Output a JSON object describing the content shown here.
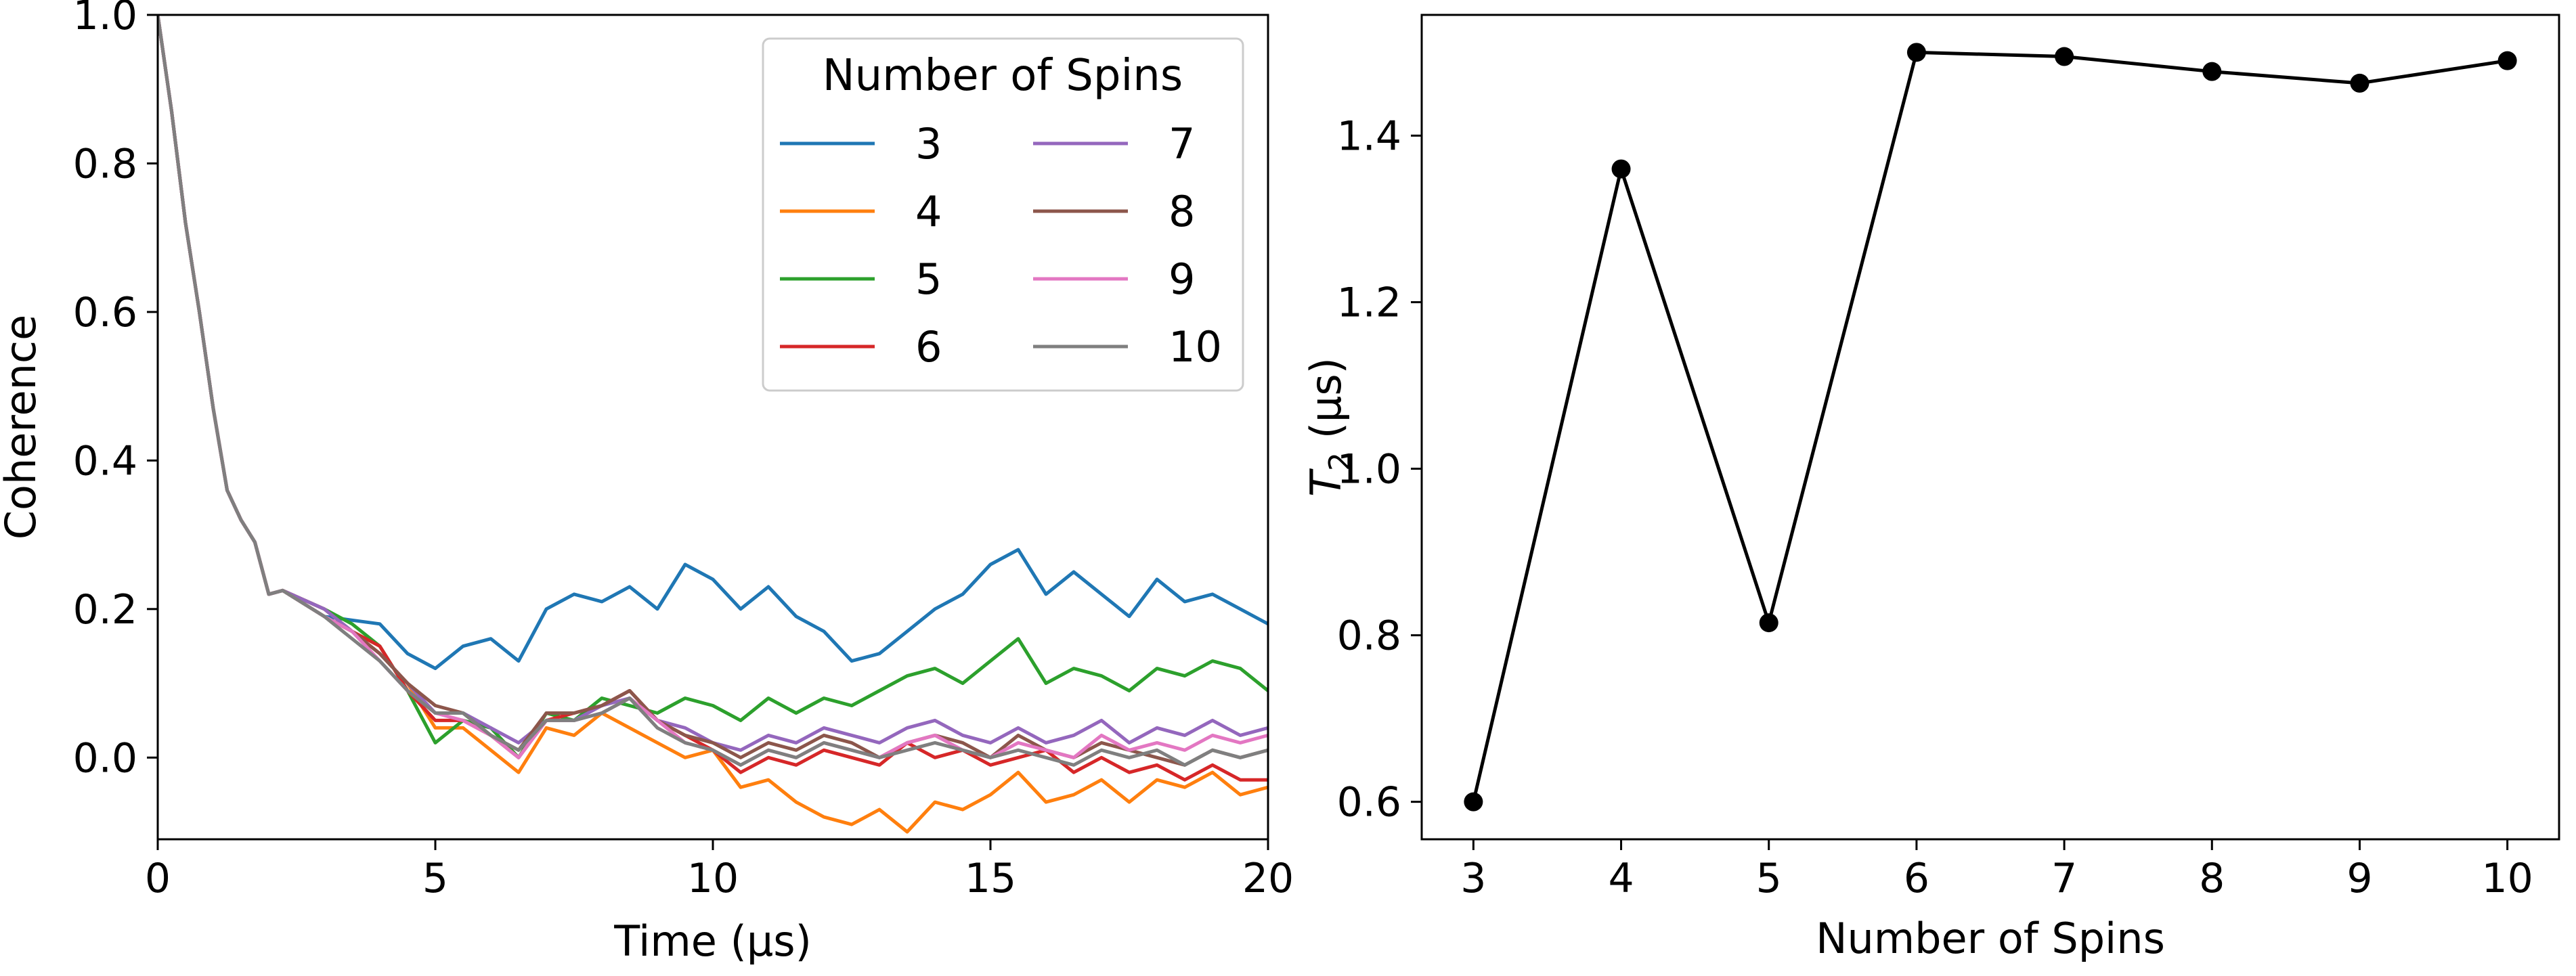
{
  "chart_data": [
    {
      "type": "line",
      "xlabel": "Time (μs)",
      "ylabel": "Coherence",
      "xlim": [
        0,
        20
      ],
      "ylim": [
        -0.11,
        1.0
      ],
      "xticks": [
        0,
        5,
        10,
        15,
        20
      ],
      "yticks": [
        0.0,
        0.2,
        0.4,
        0.6,
        0.8,
        1.0
      ],
      "xtick_labels": [
        "0",
        "5",
        "10",
        "15",
        "20"
      ],
      "ytick_labels": [
        "0.0",
        "0.2",
        "0.4",
        "0.6",
        "0.8",
        "1.0"
      ],
      "legend": {
        "title": "Number of Spins",
        "placement": "top-right",
        "columns": 2
      },
      "grid": false,
      "shared_decay": {
        "x": [
          0,
          0.25,
          0.5,
          0.75,
          1.0,
          1.25,
          1.5,
          1.75,
          2.0,
          2.25
        ],
        "y": [
          1.0,
          0.87,
          0.72,
          0.6,
          0.47,
          0.36,
          0.32,
          0.29,
          0.22,
          0.225
        ]
      },
      "series": [
        {
          "name": "3",
          "color": "#1f77b4",
          "x": [
            2.25,
            3,
            3.5,
            4,
            4.5,
            5,
            5.5,
            6,
            6.5,
            7,
            7.5,
            8,
            8.5,
            9,
            9.5,
            10,
            10.5,
            11,
            11.5,
            12,
            12.5,
            13,
            13.5,
            14,
            14.5,
            15,
            15.5,
            16,
            16.5,
            17,
            17.5,
            18,
            18.5,
            19,
            19.5,
            20
          ],
          "y": [
            0.225,
            0.19,
            0.185,
            0.18,
            0.14,
            0.12,
            0.15,
            0.16,
            0.13,
            0.2,
            0.22,
            0.21,
            0.23,
            0.2,
            0.26,
            0.24,
            0.2,
            0.23,
            0.19,
            0.17,
            0.13,
            0.14,
            0.17,
            0.2,
            0.22,
            0.26,
            0.28,
            0.22,
            0.25,
            0.22,
            0.19,
            0.24,
            0.21,
            0.22,
            0.2,
            0.18
          ]
        },
        {
          "name": "4",
          "color": "#ff7f0e",
          "x": [
            2.25,
            3,
            3.5,
            4,
            4.5,
            5,
            5.5,
            6,
            6.5,
            7,
            7.5,
            8,
            8.5,
            9,
            9.5,
            10,
            10.5,
            11,
            11.5,
            12,
            12.5,
            13,
            13.5,
            14,
            14.5,
            15,
            15.5,
            16,
            16.5,
            17,
            17.5,
            18,
            18.5,
            19,
            19.5,
            20
          ],
          "y": [
            0.21,
            0.19,
            0.17,
            0.14,
            0.1,
            0.04,
            0.04,
            0.01,
            -0.02,
            0.04,
            0.03,
            0.06,
            0.04,
            0.02,
            0.0,
            0.01,
            -0.04,
            -0.03,
            -0.06,
            -0.08,
            -0.09,
            -0.07,
            -0.1,
            -0.06,
            -0.07,
            -0.05,
            -0.02,
            -0.06,
            -0.05,
            -0.03,
            -0.06,
            -0.03,
            -0.04,
            -0.02,
            -0.05,
            -0.04
          ]
        },
        {
          "name": "5",
          "color": "#2ca02c",
          "x": [
            2.25,
            3,
            3.5,
            4,
            4.5,
            5,
            5.5,
            6,
            6.5,
            7,
            7.5,
            8,
            8.5,
            9,
            9.5,
            10,
            10.5,
            11,
            11.5,
            12,
            12.5,
            13,
            13.5,
            14,
            14.5,
            15,
            15.5,
            16,
            16.5,
            17,
            17.5,
            18,
            18.5,
            19,
            19.5,
            20
          ],
          "y": [
            0.22,
            0.2,
            0.18,
            0.15,
            0.09,
            0.02,
            0.05,
            0.04,
            0.0,
            0.06,
            0.05,
            0.08,
            0.07,
            0.06,
            0.08,
            0.07,
            0.05,
            0.08,
            0.06,
            0.08,
            0.07,
            0.09,
            0.11,
            0.12,
            0.1,
            0.13,
            0.16,
            0.1,
            0.12,
            0.11,
            0.09,
            0.12,
            0.11,
            0.13,
            0.12,
            0.09
          ]
        },
        {
          "name": "6",
          "color": "#d62728",
          "x": [
            2.25,
            3,
            3.5,
            4,
            4.5,
            5,
            5.5,
            6,
            6.5,
            7,
            7.5,
            8,
            8.5,
            9,
            9.5,
            10,
            10.5,
            11,
            11.5,
            12,
            12.5,
            13,
            13.5,
            14,
            14.5,
            15,
            15.5,
            16,
            16.5,
            17,
            17.5,
            18,
            18.5,
            19,
            19.5,
            20
          ],
          "y": [
            0.23,
            0.2,
            0.17,
            0.15,
            0.09,
            0.05,
            0.05,
            0.03,
            0.0,
            0.05,
            0.06,
            0.07,
            0.09,
            0.05,
            0.03,
            0.01,
            -0.02,
            0.0,
            -0.01,
            0.01,
            0.0,
            -0.01,
            0.02,
            0.0,
            0.01,
            -0.01,
            0.0,
            0.01,
            -0.02,
            0.0,
            -0.02,
            -0.01,
            -0.03,
            -0.01,
            -0.03,
            -0.03
          ]
        },
        {
          "name": "7",
          "color": "#9467bd",
          "x": [
            2.25,
            3,
            3.5,
            4,
            4.5,
            5,
            5.5,
            6,
            6.5,
            7,
            7.5,
            8,
            8.5,
            9,
            9.5,
            10,
            10.5,
            11,
            11.5,
            12,
            12.5,
            13,
            13.5,
            14,
            14.5,
            15,
            15.5,
            16,
            16.5,
            17,
            17.5,
            18,
            18.5,
            19,
            19.5,
            20
          ],
          "y": [
            0.22,
            0.2,
            0.17,
            0.14,
            0.1,
            0.06,
            0.06,
            0.04,
            0.02,
            0.05,
            0.05,
            0.07,
            0.08,
            0.05,
            0.04,
            0.02,
            0.01,
            0.03,
            0.02,
            0.04,
            0.03,
            0.02,
            0.04,
            0.05,
            0.03,
            0.02,
            0.04,
            0.02,
            0.03,
            0.05,
            0.02,
            0.04,
            0.03,
            0.05,
            0.03,
            0.04
          ]
        },
        {
          "name": "8",
          "color": "#8c564b",
          "x": [
            2.25,
            3,
            3.5,
            4,
            4.5,
            5,
            5.5,
            6,
            6.5,
            7,
            7.5,
            8,
            8.5,
            9,
            9.5,
            10,
            10.5,
            11,
            11.5,
            12,
            12.5,
            13,
            13.5,
            14,
            14.5,
            15,
            15.5,
            16,
            16.5,
            17,
            17.5,
            18,
            18.5,
            19,
            19.5,
            20
          ],
          "y": [
            0.22,
            0.19,
            0.17,
            0.14,
            0.1,
            0.07,
            0.06,
            0.03,
            0.01,
            0.06,
            0.06,
            0.07,
            0.09,
            0.05,
            0.03,
            0.02,
            0.0,
            0.02,
            0.01,
            0.03,
            0.02,
            0.0,
            0.02,
            0.03,
            0.02,
            0.0,
            0.03,
            0.01,
            0.0,
            0.02,
            0.01,
            0.0,
            -0.01,
            0.01,
            0.0,
            0.01
          ]
        },
        {
          "name": "9",
          "color": "#e377c2",
          "x": [
            2.25,
            3,
            3.5,
            4,
            4.5,
            5,
            5.5,
            6,
            6.5,
            7,
            7.5,
            8,
            8.5,
            9,
            9.5,
            10,
            10.5,
            11,
            11.5,
            12,
            12.5,
            13,
            13.5,
            14,
            14.5,
            15,
            15.5,
            16,
            16.5,
            17,
            17.5,
            18,
            18.5,
            19,
            19.5,
            20
          ],
          "y": [
            0.22,
            0.19,
            0.17,
            0.13,
            0.09,
            0.06,
            0.05,
            0.03,
            0.0,
            0.05,
            0.05,
            0.06,
            0.08,
            0.05,
            0.02,
            0.01,
            -0.01,
            0.01,
            0.0,
            0.02,
            0.01,
            0.0,
            0.02,
            0.03,
            0.01,
            0.0,
            0.02,
            0.01,
            0.0,
            0.03,
            0.01,
            0.02,
            0.01,
            0.03,
            0.02,
            0.03
          ]
        },
        {
          "name": "10",
          "color": "#7f7f7f",
          "x": [
            2.25,
            3,
            3.5,
            4,
            4.5,
            5,
            5.5,
            6,
            6.5,
            7,
            7.5,
            8,
            8.5,
            9,
            9.5,
            10,
            10.5,
            11,
            11.5,
            12,
            12.5,
            13,
            13.5,
            14,
            14.5,
            15,
            15.5,
            16,
            16.5,
            17,
            17.5,
            18,
            18.5,
            19,
            19.5,
            20
          ],
          "y": [
            0.21,
            0.19,
            0.16,
            0.13,
            0.09,
            0.06,
            0.06,
            0.03,
            0.01,
            0.05,
            0.05,
            0.06,
            0.08,
            0.04,
            0.02,
            0.01,
            -0.01,
            0.01,
            0.0,
            0.02,
            0.01,
            0.0,
            0.01,
            0.02,
            0.01,
            0.0,
            0.01,
            0.0,
            -0.01,
            0.01,
            0.0,
            0.01,
            -0.01,
            0.01,
            0.0,
            0.01
          ]
        }
      ]
    },
    {
      "type": "line",
      "xlabel": "Number of Spins",
      "ylabel": "T2 (μs)",
      "ylabel_main": "T",
      "ylabel_sub": "2",
      "ylabel_rest": " (μs)",
      "xlim": [
        2.65,
        10.35
      ],
      "ylim": [
        0.555,
        1.545
      ],
      "xticks": [
        3,
        4,
        5,
        6,
        7,
        8,
        9,
        10
      ],
      "yticks": [
        0.6,
        0.8,
        1.0,
        1.2,
        1.4
      ],
      "xtick_labels": [
        "3",
        "4",
        "5",
        "6",
        "7",
        "8",
        "9",
        "10"
      ],
      "ytick_labels": [
        "0.6",
        "0.8",
        "1.0",
        "1.2",
        "1.4"
      ],
      "grid": false,
      "series": [
        {
          "name": "",
          "color": "#000000",
          "marker": "circle",
          "x": [
            3,
            4,
            5,
            6,
            7,
            8,
            9,
            10
          ],
          "y": [
            0.6,
            1.36,
            0.815,
            1.5,
            1.495,
            1.477,
            1.463,
            1.49
          ]
        }
      ]
    }
  ]
}
